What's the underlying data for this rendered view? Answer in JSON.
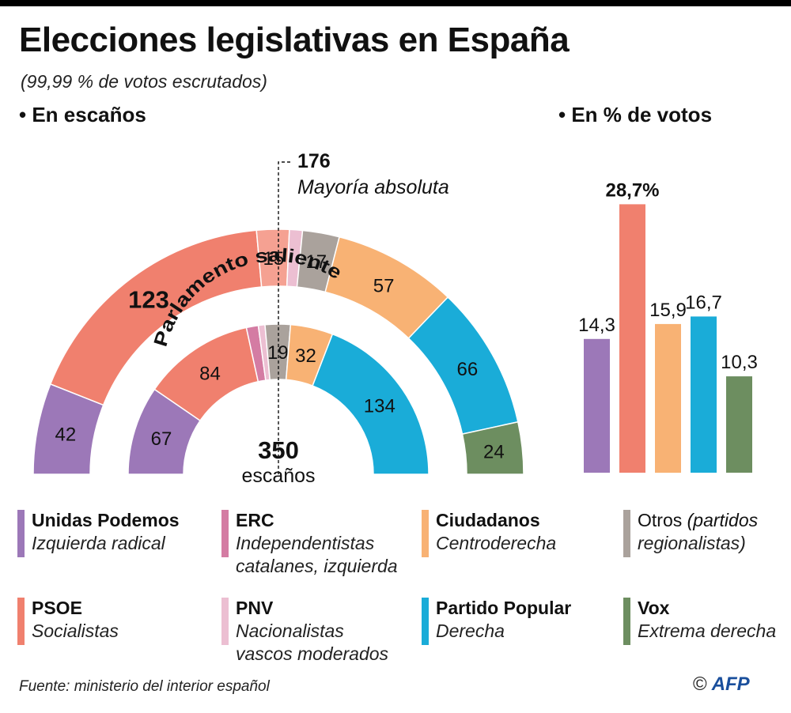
{
  "header": {
    "title": "Elecciones legislativas en España",
    "subtitle": "(99,99 % de votos escrutados)",
    "left_section": "• En escaños",
    "right_section": "• En % de votos"
  },
  "colors": {
    "podemos": "#9c78b8",
    "erc": "#d47ca3",
    "psoe": "#f0806e",
    "pnv": "#ecbfd2",
    "ciudadanos": "#f8b274",
    "otros": "#aaa29c",
    "pp": "#1aacd8",
    "vox": "#6d8e60"
  },
  "chart_data": [
    {
      "type": "parliament-semicircle",
      "title": "",
      "total_seats": 350,
      "majority": 176,
      "majority_label": "Mayoría absoluta",
      "center_value": "350",
      "center_label": "escaños",
      "rings": [
        {
          "name": "",
          "segments": [
            {
              "party": "Unidas Podemos",
              "color_key": "podemos",
              "seats": 42,
              "label": "42"
            },
            {
              "party": "PSOE",
              "color_key": "psoe",
              "seats": 123,
              "label": "123",
              "bold": true
            },
            {
              "party": "ERC",
              "color_key": "psoe",
              "seats": 15,
              "label": "15",
              "tint": "#f5a192"
            },
            {
              "party": "PNV",
              "color_key": "pnv",
              "seats": 6,
              "label": ""
            },
            {
              "party": "Otros",
              "color_key": "otros",
              "seats": 17,
              "label": "17"
            },
            {
              "party": "Ciudadanos",
              "color_key": "ciudadanos",
              "seats": 57,
              "label": "57"
            },
            {
              "party": "Partido Popular",
              "color_key": "pp",
              "seats": 66,
              "label": "66"
            },
            {
              "party": "Vox",
              "color_key": "vox",
              "seats": 24,
              "label": "24"
            }
          ]
        },
        {
          "name": "Parlamento saliente",
          "segments": [
            {
              "party": "Unidas Podemos",
              "color_key": "podemos",
              "seats": 67,
              "label": "67"
            },
            {
              "party": "PSOE",
              "color_key": "psoe",
              "seats": 84,
              "label": "84"
            },
            {
              "party": "ERC",
              "color_key": "erc",
              "seats": 9,
              "label": ""
            },
            {
              "party": "PNV",
              "color_key": "pnv",
              "seats": 5,
              "label": ""
            },
            {
              "party": "Otros",
              "color_key": "otros",
              "seats": 19,
              "label": "19"
            },
            {
              "party": "Ciudadanos",
              "color_key": "ciudadanos",
              "seats": 32,
              "label": "32"
            },
            {
              "party": "Partido Popular",
              "color_key": "pp",
              "seats": 134,
              "label": "134"
            }
          ]
        }
      ]
    },
    {
      "type": "bar",
      "title": "",
      "categories": [
        "Unidas Podemos",
        "PSOE",
        "Ciudadanos",
        "Partido Popular",
        "Vox"
      ],
      "values": [
        14.3,
        28.7,
        15.9,
        16.7,
        10.3
      ],
      "value_labels": [
        "14,3",
        "28,7%",
        "15,9",
        "16,7",
        "10,3"
      ],
      "color_keys": [
        "podemos",
        "psoe",
        "ciudadanos",
        "pp",
        "vox"
      ],
      "ylim": [
        0,
        30
      ]
    }
  ],
  "legend": [
    {
      "color_key": "podemos",
      "name": "Unidas Podemos",
      "desc": "Izquierda radical"
    },
    {
      "color_key": "erc",
      "name": "ERC",
      "desc": "Independentistas\ncatalanes, izquierda"
    },
    {
      "color_key": "ciudadanos",
      "name": "Ciudadanos",
      "desc": "Centroderecha"
    },
    {
      "color_key": "otros",
      "name": "Otros",
      "name_suffix": "(partidos",
      "desc": "regionalistas)"
    },
    {
      "color_key": "psoe",
      "name": "PSOE",
      "desc": "Socialistas"
    },
    {
      "color_key": "pnv",
      "name": "PNV",
      "desc": "Nacionalistas\nvascos moderados"
    },
    {
      "color_key": "pp",
      "name": "Partido Popular",
      "desc": "Derecha"
    },
    {
      "color_key": "vox",
      "name": "Vox",
      "desc": "Extrema derecha"
    }
  ],
  "footer": {
    "source": "Fuente: ministerio del interior español",
    "copyright": "©",
    "agency": "AFP"
  }
}
